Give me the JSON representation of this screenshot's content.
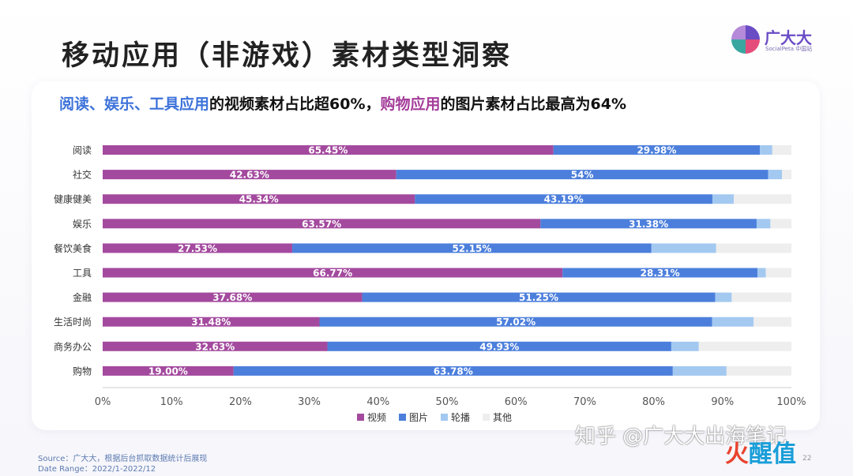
{
  "page": {
    "title": "移动应用（非游戏）素材类型洞察",
    "page_number": "22"
  },
  "brand": {
    "name": "广大大",
    "sub": "SocialPeta 中国站"
  },
  "headline": {
    "part1": "阅读、娱乐、工具应用",
    "part2": "的视频素材占比超60%，",
    "part3": "购物应用",
    "part4": "的图片素材占比最高为64%"
  },
  "footer": {
    "source": "Source：广大大，根据后台抓取数据统计后展现",
    "date_range": "Date Range：2022/1-2022/12"
  },
  "watermark": {
    "text": "知乎 @广大大出海笔记",
    "logo_a": "火",
    "logo_b": "醒值"
  },
  "colors": {
    "视频": "#a34a9e",
    "图片": "#4c7fdc",
    "轮播": "#a3c9f1",
    "其他": "#eeeeee"
  },
  "chart_data": {
    "type": "bar",
    "orientation": "horizontal",
    "stacked": true,
    "categories": [
      "阅读",
      "社交",
      "健康健美",
      "娱乐",
      "餐饮美食",
      "工具",
      "金融",
      "生活时尚",
      "商务办公",
      "购物"
    ],
    "series": [
      {
        "name": "视频",
        "values": [
          65.45,
          42.63,
          45.34,
          63.57,
          27.53,
          66.77,
          37.68,
          31.48,
          32.63,
          19.0
        ],
        "labels": [
          "65.45%",
          "42.63%",
          "45.34%",
          "63.57%",
          "27.53%",
          "66.77%",
          "37.68%",
          "31.48%",
          "32.63%",
          "19.00%"
        ]
      },
      {
        "name": "图片",
        "values": [
          29.98,
          54,
          43.19,
          31.38,
          52.15,
          28.31,
          51.25,
          57.02,
          49.93,
          63.78
        ],
        "labels": [
          "29.98%",
          "54%",
          "43.19%",
          "31.38%",
          "52.15%",
          "28.31%",
          "51.25%",
          "57.02%",
          "49.93%",
          "63.78%"
        ]
      },
      {
        "name": "轮播",
        "values": [
          1.8,
          2.0,
          3.1,
          2.0,
          9.4,
          1.2,
          2.4,
          6.0,
          4.0,
          7.8
        ]
      },
      {
        "name": "其他",
        "values": [
          2.77,
          1.37,
          8.37,
          3.05,
          10.92,
          3.72,
          8.67,
          5.5,
          13.44,
          9.42
        ]
      }
    ],
    "xlim": [
      0,
      100
    ],
    "xticks": [
      "0%",
      "10%",
      "20%",
      "30%",
      "40%",
      "50%",
      "60%",
      "70%",
      "80%",
      "90%",
      "100%"
    ],
    "legend_position": "bottom"
  }
}
